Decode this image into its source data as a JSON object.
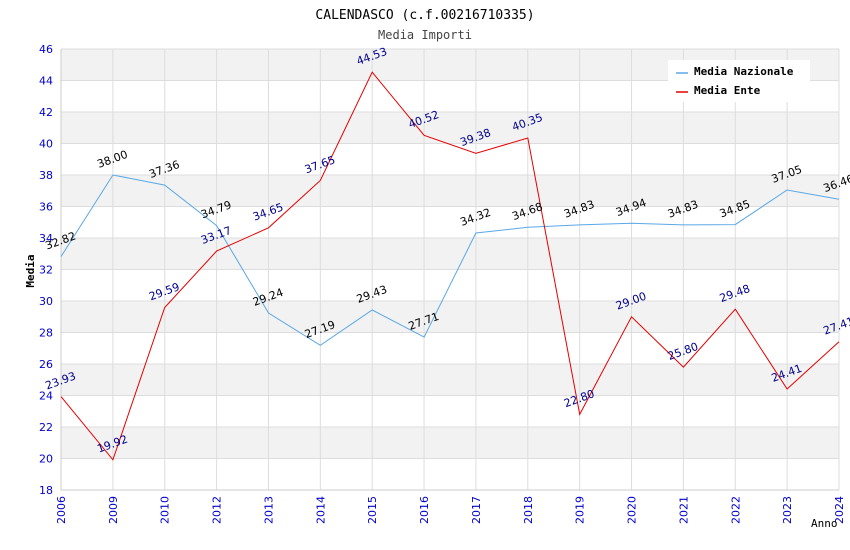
{
  "chart_data": {
    "type": "line",
    "title": "CALENDASCO (c.f.00216710335)",
    "subtitle": "Media Importi",
    "xlabel": "Anno",
    "ylabel": "Media",
    "ylim": [
      18,
      46
    ],
    "yticks": [
      "18",
      "20",
      "22",
      "24",
      "26",
      "28",
      "30",
      "32",
      "34",
      "36",
      "38",
      "40",
      "42",
      "44",
      "46"
    ],
    "categories": [
      "2006",
      "2009",
      "2010",
      "2012",
      "2013",
      "2014",
      "2015",
      "2016",
      "2017",
      "2018",
      "2019",
      "2020",
      "2021",
      "2022",
      "2023",
      "2024"
    ],
    "legend_position": "top-right",
    "series": [
      {
        "name": "Media Nazionale",
        "color": "#5aa8e6",
        "label_color": "#000000",
        "values": [
          32.82,
          38.0,
          37.36,
          34.79,
          29.24,
          27.19,
          29.43,
          27.71,
          34.32,
          34.68,
          34.83,
          34.94,
          34.83,
          34.85,
          37.05,
          36.46
        ],
        "labels": [
          "32.82",
          "38.00",
          "37.36",
          "34.79",
          "29.24",
          "27.19",
          "29.43",
          "27.71",
          "34.32",
          "34.68",
          "34.83",
          "34.94",
          "34.83",
          "34.85",
          "37.05",
          "36.46"
        ]
      },
      {
        "name": "Media Ente",
        "color": "#e60000",
        "label_color": "#00008b",
        "values": [
          23.93,
          19.92,
          29.59,
          33.17,
          34.65,
          37.65,
          44.53,
          40.52,
          39.38,
          40.35,
          22.8,
          29.0,
          25.8,
          29.48,
          24.41,
          27.41
        ],
        "labels": [
          "23.93",
          "19.92",
          "29.59",
          "33.17",
          "34.65",
          "37.65",
          "44.53",
          "40.52",
          "39.38",
          "40.35",
          "22.80",
          "29.00",
          "25.80",
          "29.48",
          "24.41",
          "27.41"
        ]
      }
    ],
    "colors": {
      "axis_text": "#0000cc",
      "band": "#f2f2f2",
      "grid": "#dddddd"
    }
  }
}
